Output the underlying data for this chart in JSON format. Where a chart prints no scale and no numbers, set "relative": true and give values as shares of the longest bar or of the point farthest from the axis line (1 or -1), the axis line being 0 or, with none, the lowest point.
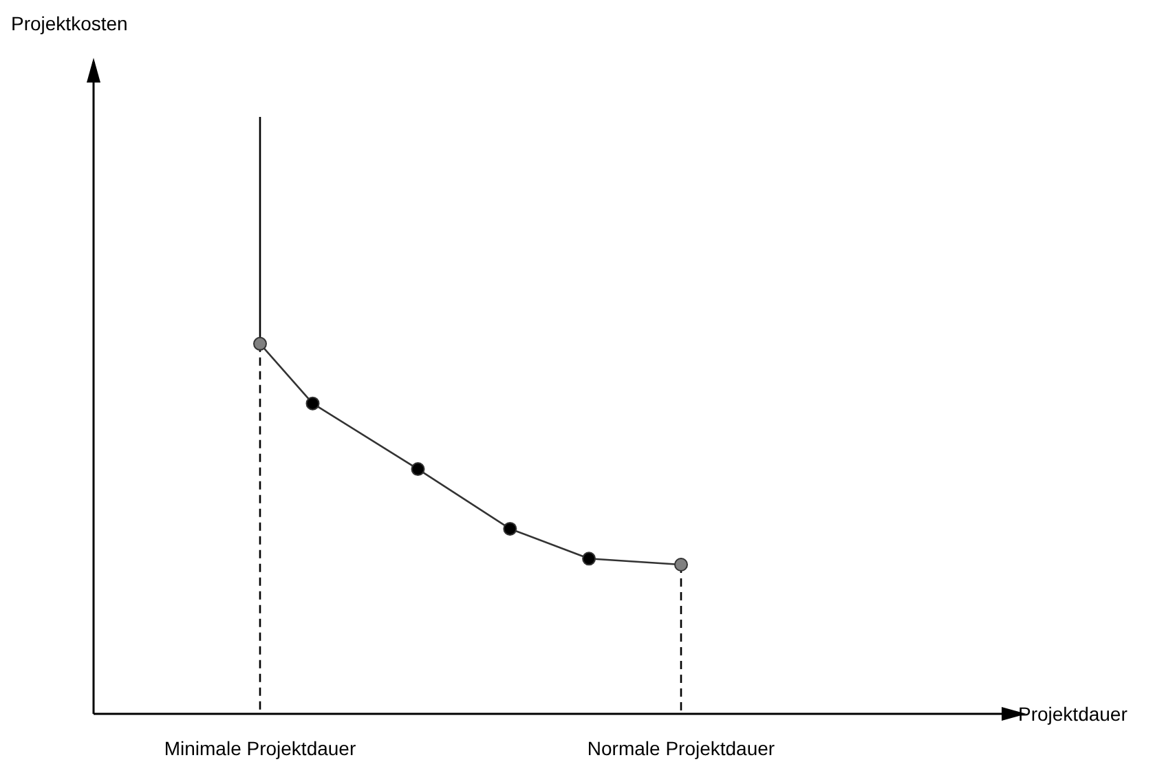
{
  "chart_data": {
    "type": "line",
    "relative": true,
    "annotations": [
      "Projektdauer"
    ],
    "ylabel": "Projektkosten",
    "categories": [
      "Minimale Projektdauer",
      null,
      null,
      null,
      null,
      null,
      null,
      null,
      null,
      null,
      null,
      null,
      null,
      null,
      null,
      null,
      null,
      null,
      null,
      null,
      null,
      null,
      null,
      null,
      null,
      null,
      null,
      null,
      null,
      null,
      null,
      null,
      "Normale Projektdauer"
    ],
    "series": [
      {
        "x": [
          "Minimale Projektdauer",
          "Minimale Projektdauer"
        ],
        "values": [
          1,
          0.62
        ],
        "color": "#000000",
        "marker": "none",
        "line_style": "solid"
      },
      {
        "x": [
          "Minimale Projektdauer",
          "Minimale Projektdauer"
        ],
        "values": [
          0.62,
          0
        ],
        "color": "#000000",
        "marker": "none",
        "line_style": "dashed"
      },
      {
        "x": [
          "Normale Projektdauer",
          "Normale Projektdauer"
        ],
        "values": [
          0.25,
          0
        ],
        "color": "#000000",
        "marker": "none",
        "line_style": "dashed"
      },
      {
        "values": [
          0.62,
          null,
          null,
          null,
          0.52,
          null,
          null,
          null,
          null,
          null,
          null,
          null,
          0.41,
          null,
          null,
          null,
          null,
          null,
          null,
          0.31,
          null,
          null,
          null,
          null,
          null,
          0.26,
          null,
          null,
          null,
          null,
          null,
          null,
          0.25
        ],
        "color": "#333333",
        "marker": "circle",
        "line_style": "solid",
        "colors": [
          "#808080",
          null,
          null,
          null,
          "#000000",
          null,
          null,
          null,
          null,
          null,
          null,
          null,
          "#000000",
          null,
          null,
          null,
          null,
          null,
          null,
          "#000000",
          null,
          null,
          null,
          null,
          null,
          "#000000",
          null,
          null,
          null,
          null,
          null,
          null,
          "#808080"
        ]
      }
    ]
  }
}
